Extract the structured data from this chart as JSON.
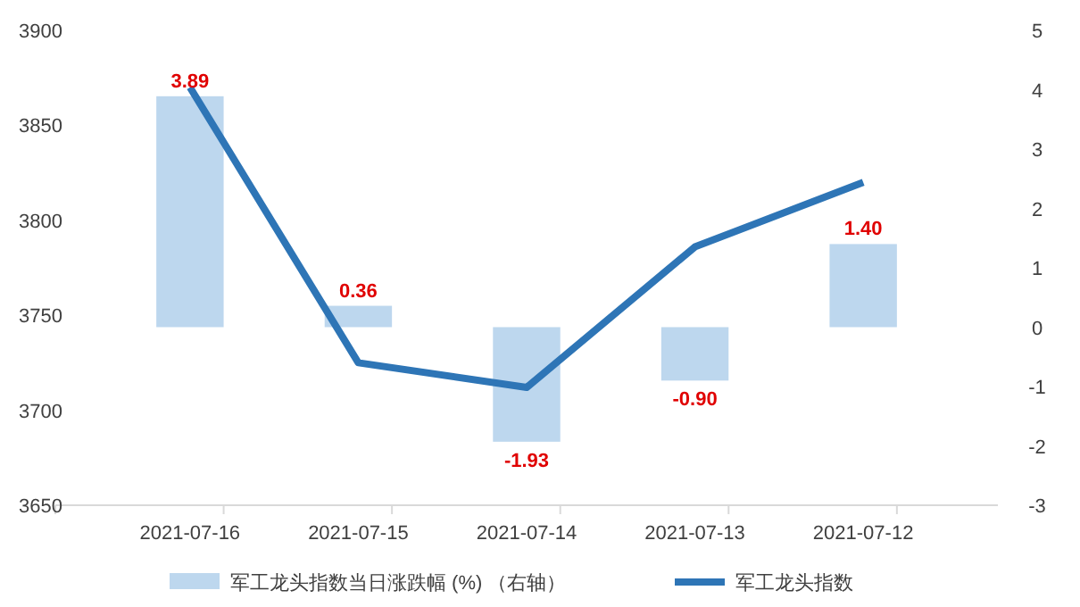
{
  "chart_data": {
    "type": "bar",
    "categories": [
      "2021-07-16",
      "2021-07-15",
      "2021-07-14",
      "2021-07-13",
      "2021-07-12"
    ],
    "series": [
      {
        "name": "军工龙头指数当日涨跌幅 (%) （右轴）",
        "axis": "y2",
        "color": "#bdd7ee",
        "values": [
          3.89,
          0.36,
          -1.93,
          -0.9,
          1.4
        ],
        "value_labels": [
          "3.89",
          "0.36",
          "-1.93",
          "-0.90",
          "1.40"
        ]
      },
      {
        "name": "军工龙头指数",
        "type": "line",
        "color": "#2e75b6",
        "values": [
          3870,
          3725,
          3712,
          3786,
          3820
        ]
      }
    ],
    "ylim": [
      3650,
      3900
    ],
    "yticks": [
      3650,
      3700,
      3750,
      3800,
      3850,
      3900
    ],
    "y2lim": [
      -3,
      5
    ],
    "y2ticks": [
      -3,
      -2,
      -1,
      0,
      1,
      2,
      3,
      4,
      5
    ],
    "grid": false,
    "legend": "bottom",
    "marker": "none",
    "line_style": "solid"
  }
}
